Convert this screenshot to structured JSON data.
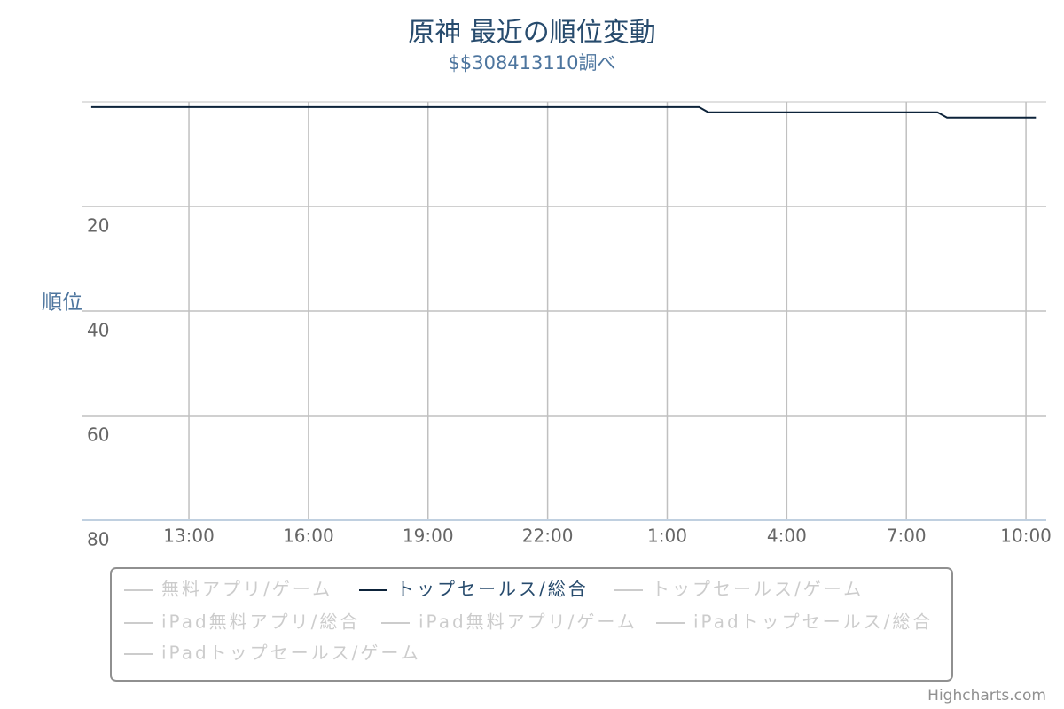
{
  "chart_data": {
    "type": "line",
    "title": "原神 最近の順位変動",
    "subtitle": "$$308413110調べ",
    "y_label": "順位",
    "credits": "Highcharts.com",
    "xlim": [
      10.33,
      34.51
    ],
    "xticks": [
      {
        "value": 13,
        "label": "13:00"
      },
      {
        "value": 16,
        "label": "16:00"
      },
      {
        "value": 19,
        "label": "19:00"
      },
      {
        "value": 22,
        "label": "22:00"
      },
      {
        "value": 25,
        "label": "1:00"
      },
      {
        "value": 28,
        "label": "4:00"
      },
      {
        "value": 31,
        "label": "7:00"
      },
      {
        "value": 34,
        "label": "10:00"
      }
    ],
    "ylim": [
      0,
      80
    ],
    "yticks": [
      20,
      40,
      60,
      80
    ],
    "y_reversed": true,
    "grid": true,
    "series": [
      {
        "name": "無料アプリ/ゲーム",
        "visible": false
      },
      {
        "name": "トップセールス/総合",
        "color": "#0d233a",
        "visible": true,
        "x": [
          10.55,
          25.8,
          26.03,
          31.78,
          32.02,
          34.25
        ],
        "values": [
          1,
          1,
          2,
          2,
          3,
          3
        ]
      },
      {
        "name": "トップセールス/ゲーム",
        "visible": false
      },
      {
        "name": "iPad無料アプリ/総合",
        "visible": false
      },
      {
        "name": "iPad無料アプリ/ゲーム",
        "visible": false
      },
      {
        "name": "iPadトップセールス/総合",
        "visible": false
      },
      {
        "name": "iPadトップセールス/ゲーム",
        "visible": false
      }
    ]
  }
}
